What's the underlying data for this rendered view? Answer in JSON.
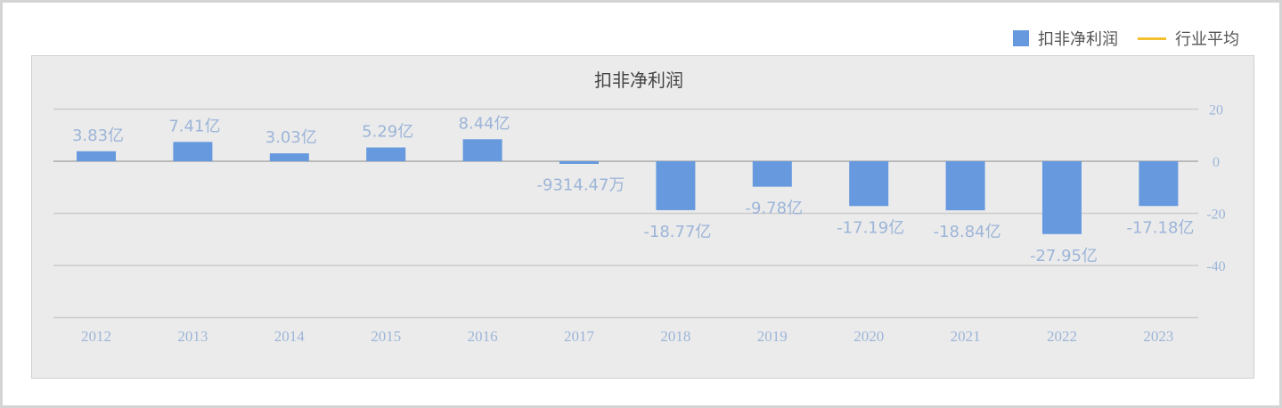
{
  "legend": {
    "series_label": "扣非净利润",
    "average_label": "行业平均"
  },
  "colors": {
    "bar": "#6699dd",
    "average": "#f5c030",
    "label": "#9db5d8",
    "grid": "#cccccc"
  },
  "chart_data": {
    "type": "bar",
    "title": "扣非净利润",
    "categories": [
      "2012",
      "2013",
      "2014",
      "2015",
      "2016",
      "2017",
      "2018",
      "2019",
      "2020",
      "2021",
      "2022",
      "2023"
    ],
    "series": [
      {
        "name": "扣非净利润",
        "values": [
          3.83,
          7.41,
          3.03,
          5.29,
          8.44,
          -0.931447,
          -18.77,
          -9.78,
          -17.19,
          -18.84,
          -27.95,
          -17.18
        ]
      }
    ],
    "data_labels": [
      "3.83亿",
      "7.41亿",
      "3.03亿",
      "5.29亿",
      "8.44亿",
      "-9314.47万",
      "-18.77亿",
      "-9.78亿",
      "-17.19亿",
      "-18.84亿",
      "-27.95亿",
      "-17.18亿"
    ],
    "y_unit": "亿",
    "ylim": [
      -60,
      20
    ],
    "y_ticks": [
      20,
      0,
      -20,
      -40
    ],
    "y_axis_side": "right",
    "grid": true,
    "legend_position": "top-right"
  }
}
